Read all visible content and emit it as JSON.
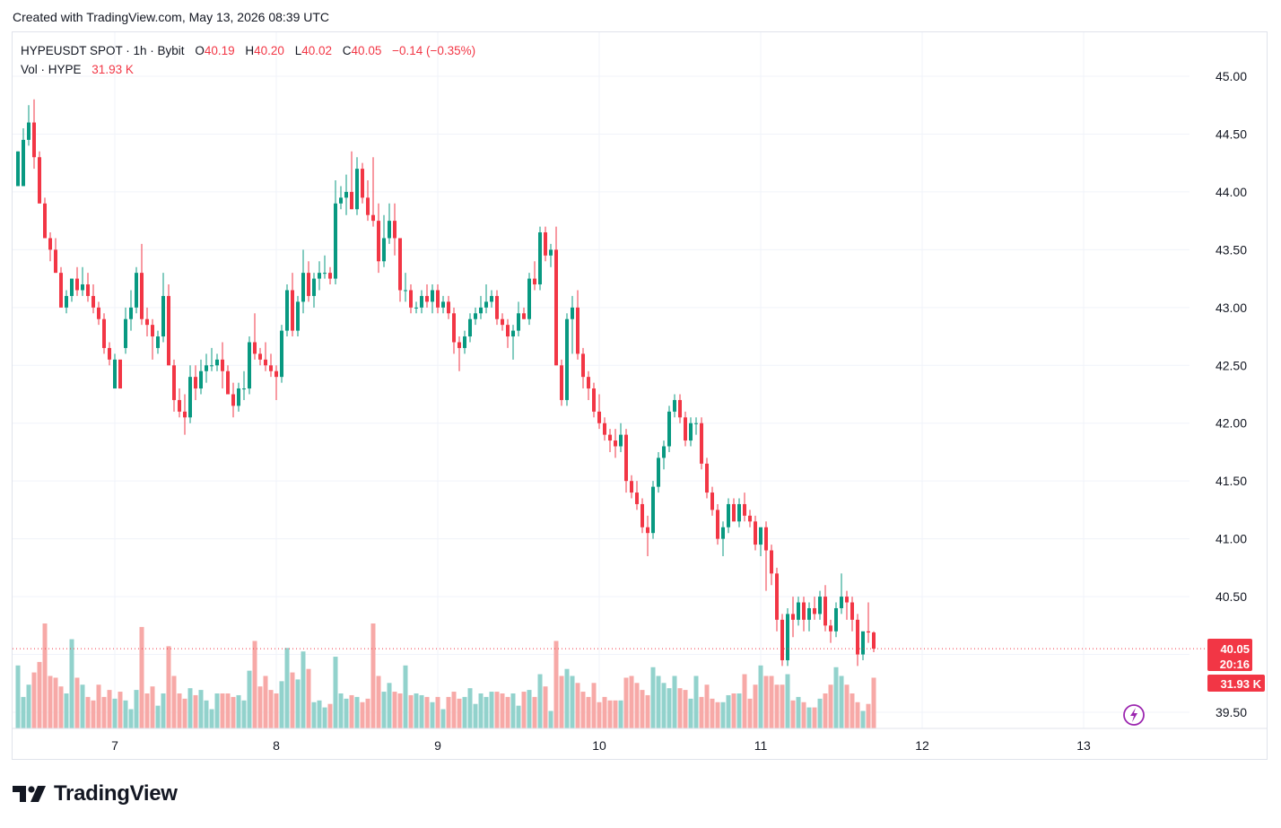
{
  "header": {
    "created_with": "Created with TradingView.com, May 13, 2026 08:39 UTC"
  },
  "legend": {
    "symbol": "HYPEUSDT SPOT · 1h · Bybit",
    "o_label": "O",
    "o_value": "40.19",
    "h_label": "H",
    "h_value": "40.20",
    "l_label": "L",
    "l_value": "40.02",
    "c_label": "C",
    "c_value": "40.05",
    "change": "−0.14 (−0.35%)",
    "vol_label": "Vol · HYPE",
    "vol_value": "31.93 K"
  },
  "price_tag": {
    "price": "40.05",
    "countdown": "20:16",
    "volume": "31.93 K"
  },
  "brand": {
    "name": "TradingView"
  },
  "colors": {
    "up": "#089981",
    "down": "#f23645",
    "up_vol": "#92d2cc",
    "down_vol": "#f7a9a7",
    "grid": "#f0f3fa",
    "axis_text": "#131722"
  },
  "chart_data": {
    "type": "candlestick",
    "ylim": [
      39.4,
      45.2
    ],
    "y_ticks": [
      "45.00",
      "44.50",
      "44.00",
      "43.50",
      "43.00",
      "42.50",
      "42.00",
      "41.50",
      "41.00",
      "40.50",
      "39.50"
    ],
    "x_ticks": [
      {
        "label": "7",
        "index": 18
      },
      {
        "label": "8",
        "index": 48
      },
      {
        "label": "9",
        "index": 78
      },
      {
        "label": "10",
        "index": 108
      },
      {
        "label": "11",
        "index": 138
      },
      {
        "label": "12",
        "index": 168
      },
      {
        "label": "13",
        "index": 198
      }
    ],
    "candles": [
      {
        "o": 44.05,
        "h": 44.35,
        "l": 44.05,
        "c": 44.35,
        "v": 0.36
      },
      {
        "o": 44.05,
        "h": 44.55,
        "l": 44.05,
        "c": 44.45,
        "v": 0.18
      },
      {
        "o": 44.45,
        "h": 44.75,
        "l": 44.4,
        "c": 44.6,
        "v": 0.25
      },
      {
        "o": 44.6,
        "h": 44.8,
        "l": 44.2,
        "c": 44.3,
        "v": 0.32
      },
      {
        "o": 44.3,
        "h": 44.35,
        "l": 43.9,
        "c": 43.9,
        "v": 0.38
      },
      {
        "o": 43.9,
        "h": 43.95,
        "l": 43.6,
        "c": 43.6,
        "v": 0.6
      },
      {
        "o": 43.6,
        "h": 43.65,
        "l": 43.4,
        "c": 43.5,
        "v": 0.3
      },
      {
        "o": 43.5,
        "h": 43.6,
        "l": 43.3,
        "c": 43.3,
        "v": 0.29
      },
      {
        "o": 43.3,
        "h": 43.35,
        "l": 43.0,
        "c": 43.0,
        "v": 0.24
      },
      {
        "o": 43.0,
        "h": 43.15,
        "l": 42.95,
        "c": 43.1,
        "v": 0.2
      },
      {
        "o": 43.1,
        "h": 43.25,
        "l": 43.05,
        "c": 43.25,
        "v": 0.51
      },
      {
        "o": 43.25,
        "h": 43.35,
        "l": 43.1,
        "c": 43.15,
        "v": 0.29
      },
      {
        "o": 43.15,
        "h": 43.35,
        "l": 43.1,
        "c": 43.2,
        "v": 0.25
      },
      {
        "o": 43.2,
        "h": 43.3,
        "l": 43.05,
        "c": 43.1,
        "v": 0.18
      },
      {
        "o": 43.1,
        "h": 43.2,
        "l": 42.95,
        "c": 43.0,
        "v": 0.16
      },
      {
        "o": 43.0,
        "h": 43.05,
        "l": 42.85,
        "c": 42.9,
        "v": 0.25
      },
      {
        "o": 42.9,
        "h": 42.95,
        "l": 42.6,
        "c": 42.65,
        "v": 0.18
      },
      {
        "o": 42.65,
        "h": 42.7,
        "l": 42.5,
        "c": 42.55,
        "v": 0.22
      },
      {
        "o": 42.3,
        "h": 42.6,
        "l": 42.3,
        "c": 42.55,
        "v": 0.17
      },
      {
        "o": 42.55,
        "h": 42.55,
        "l": 42.3,
        "c": 42.3,
        "v": 0.21
      },
      {
        "o": 42.65,
        "h": 43.0,
        "l": 42.6,
        "c": 42.9,
        "v": 0.16
      },
      {
        "o": 42.9,
        "h": 43.15,
        "l": 42.8,
        "c": 43.0,
        "v": 0.11
      },
      {
        "o": 43.0,
        "h": 43.35,
        "l": 42.95,
        "c": 43.3,
        "v": 0.22
      },
      {
        "o": 43.3,
        "h": 43.55,
        "l": 42.85,
        "c": 42.9,
        "v": 0.58
      },
      {
        "o": 42.9,
        "h": 43.0,
        "l": 42.75,
        "c": 42.85,
        "v": 0.2
      },
      {
        "o": 42.85,
        "h": 42.9,
        "l": 42.55,
        "c": 42.75,
        "v": 0.24
      },
      {
        "o": 42.65,
        "h": 42.8,
        "l": 42.6,
        "c": 42.75,
        "v": 0.13
      },
      {
        "o": 42.75,
        "h": 43.3,
        "l": 42.7,
        "c": 43.1,
        "v": 0.2
      },
      {
        "o": 43.1,
        "h": 43.2,
        "l": 42.5,
        "c": 42.5,
        "v": 0.47
      },
      {
        "o": 42.5,
        "h": 42.55,
        "l": 42.1,
        "c": 42.2,
        "v": 0.3
      },
      {
        "o": 42.2,
        "h": 42.3,
        "l": 42.05,
        "c": 42.1,
        "v": 0.2
      },
      {
        "o": 42.1,
        "h": 42.25,
        "l": 41.9,
        "c": 42.05,
        "v": 0.17
      },
      {
        "o": 42.05,
        "h": 42.5,
        "l": 42.0,
        "c": 42.4,
        "v": 0.23
      },
      {
        "o": 42.4,
        "h": 42.5,
        "l": 42.2,
        "c": 42.3,
        "v": 0.19
      },
      {
        "o": 42.3,
        "h": 42.55,
        "l": 42.25,
        "c": 42.45,
        "v": 0.22
      },
      {
        "o": 42.45,
        "h": 42.6,
        "l": 42.35,
        "c": 42.5,
        "v": 0.16
      },
      {
        "o": 42.5,
        "h": 42.65,
        "l": 42.45,
        "c": 42.5,
        "v": 0.11
      },
      {
        "o": 42.5,
        "h": 42.6,
        "l": 42.45,
        "c": 42.55,
        "v": 0.2
      },
      {
        "o": 42.55,
        "h": 42.7,
        "l": 42.3,
        "c": 42.45,
        "v": 0.2
      },
      {
        "o": 42.45,
        "h": 42.5,
        "l": 42.25,
        "c": 42.25,
        "v": 0.2
      },
      {
        "o": 42.25,
        "h": 42.35,
        "l": 42.05,
        "c": 42.15,
        "v": 0.18
      },
      {
        "o": 42.15,
        "h": 42.35,
        "l": 42.1,
        "c": 42.3,
        "v": 0.19
      },
      {
        "o": 42.3,
        "h": 42.45,
        "l": 42.2,
        "c": 42.3,
        "v": 0.16
      },
      {
        "o": 42.3,
        "h": 42.75,
        "l": 42.25,
        "c": 42.7,
        "v": 0.33
      },
      {
        "o": 42.7,
        "h": 42.95,
        "l": 42.55,
        "c": 42.6,
        "v": 0.5
      },
      {
        "o": 42.6,
        "h": 42.65,
        "l": 42.5,
        "c": 42.55,
        "v": 0.24
      },
      {
        "o": 42.55,
        "h": 42.7,
        "l": 42.45,
        "c": 42.5,
        "v": 0.3
      },
      {
        "o": 42.5,
        "h": 42.6,
        "l": 42.4,
        "c": 42.45,
        "v": 0.22
      },
      {
        "o": 42.45,
        "h": 42.5,
        "l": 42.2,
        "c": 42.4,
        "v": 0.2
      },
      {
        "o": 42.4,
        "h": 42.85,
        "l": 42.35,
        "c": 42.8,
        "v": 0.27
      },
      {
        "o": 42.8,
        "h": 43.2,
        "l": 42.75,
        "c": 43.15,
        "v": 0.46
      },
      {
        "o": 43.15,
        "h": 43.3,
        "l": 42.75,
        "c": 42.8,
        "v": 0.32
      },
      {
        "o": 42.8,
        "h": 43.1,
        "l": 42.75,
        "c": 43.05,
        "v": 0.28
      },
      {
        "o": 43.05,
        "h": 43.5,
        "l": 42.95,
        "c": 43.3,
        "v": 0.44
      },
      {
        "o": 43.3,
        "h": 43.4,
        "l": 43.05,
        "c": 43.1,
        "v": 0.34
      },
      {
        "o": 43.1,
        "h": 43.3,
        "l": 43.0,
        "c": 43.25,
        "v": 0.15
      },
      {
        "o": 43.25,
        "h": 43.4,
        "l": 43.15,
        "c": 43.3,
        "v": 0.16
      },
      {
        "o": 43.3,
        "h": 43.45,
        "l": 43.25,
        "c": 43.3,
        "v": 0.12
      },
      {
        "o": 43.3,
        "h": 43.35,
        "l": 43.2,
        "c": 43.25,
        "v": 0.14
      },
      {
        "o": 43.25,
        "h": 44.1,
        "l": 43.2,
        "c": 43.9,
        "v": 0.41
      },
      {
        "o": 43.9,
        "h": 44.05,
        "l": 43.85,
        "c": 43.95,
        "v": 0.2
      },
      {
        "o": 43.95,
        "h": 44.15,
        "l": 43.8,
        "c": 44.0,
        "v": 0.17
      },
      {
        "o": 44.0,
        "h": 44.35,
        "l": 43.85,
        "c": 43.85,
        "v": 0.19
      },
      {
        "o": 43.85,
        "h": 44.3,
        "l": 43.8,
        "c": 44.2,
        "v": 0.18
      },
      {
        "o": 44.2,
        "h": 44.25,
        "l": 43.9,
        "c": 43.95,
        "v": 0.15
      },
      {
        "o": 43.95,
        "h": 44.1,
        "l": 43.75,
        "c": 43.8,
        "v": 0.17
      },
      {
        "o": 43.8,
        "h": 44.3,
        "l": 43.7,
        "c": 43.75,
        "v": 0.6
      },
      {
        "o": 43.75,
        "h": 43.9,
        "l": 43.3,
        "c": 43.4,
        "v": 0.3
      },
      {
        "o": 43.4,
        "h": 43.8,
        "l": 43.35,
        "c": 43.6,
        "v": 0.21
      },
      {
        "o": 43.6,
        "h": 43.9,
        "l": 43.55,
        "c": 43.75,
        "v": 0.26
      },
      {
        "o": 43.75,
        "h": 43.9,
        "l": 43.45,
        "c": 43.6,
        "v": 0.21
      },
      {
        "o": 43.6,
        "h": 43.6,
        "l": 43.05,
        "c": 43.15,
        "v": 0.2
      },
      {
        "o": 43.15,
        "h": 43.3,
        "l": 43.05,
        "c": 43.15,
        "v": 0.36
      },
      {
        "o": 43.15,
        "h": 43.2,
        "l": 42.95,
        "c": 43.0,
        "v": 0.19
      },
      {
        "o": 43.0,
        "h": 43.05,
        "l": 42.95,
        "c": 43.0,
        "v": 0.2
      },
      {
        "o": 43.0,
        "h": 43.15,
        "l": 42.95,
        "c": 43.1,
        "v": 0.19
      },
      {
        "o": 43.1,
        "h": 43.2,
        "l": 43.0,
        "c": 43.05,
        "v": 0.18
      },
      {
        "o": 43.05,
        "h": 43.2,
        "l": 42.95,
        "c": 43.15,
        "v": 0.15
      },
      {
        "o": 43.15,
        "h": 43.2,
        "l": 42.95,
        "c": 43.0,
        "v": 0.18
      },
      {
        "o": 43.0,
        "h": 43.1,
        "l": 42.95,
        "c": 43.05,
        "v": 0.11
      },
      {
        "o": 43.05,
        "h": 43.1,
        "l": 42.9,
        "c": 42.95,
        "v": 0.18
      },
      {
        "o": 42.95,
        "h": 43.0,
        "l": 42.6,
        "c": 42.7,
        "v": 0.21
      },
      {
        "o": 42.7,
        "h": 42.75,
        "l": 42.45,
        "c": 42.65,
        "v": 0.17
      },
      {
        "o": 42.65,
        "h": 42.8,
        "l": 42.6,
        "c": 42.75,
        "v": 0.18
      },
      {
        "o": 42.75,
        "h": 42.95,
        "l": 42.7,
        "c": 42.9,
        "v": 0.23
      },
      {
        "o": 42.9,
        "h": 43.0,
        "l": 42.85,
        "c": 42.95,
        "v": 0.14
      },
      {
        "o": 42.95,
        "h": 43.1,
        "l": 42.9,
        "c": 43.0,
        "v": 0.2
      },
      {
        "o": 43.0,
        "h": 43.2,
        "l": 42.95,
        "c": 43.05,
        "v": 0.18
      },
      {
        "o": 43.05,
        "h": 43.15,
        "l": 43.0,
        "c": 43.1,
        "v": 0.21
      },
      {
        "o": 43.1,
        "h": 43.15,
        "l": 42.85,
        "c": 42.9,
        "v": 0.21
      },
      {
        "o": 42.9,
        "h": 42.95,
        "l": 42.8,
        "c": 42.85,
        "v": 0.2
      },
      {
        "o": 42.85,
        "h": 42.9,
        "l": 42.65,
        "c": 42.75,
        "v": 0.18
      },
      {
        "o": 42.75,
        "h": 42.85,
        "l": 42.55,
        "c": 42.8,
        "v": 0.2
      },
      {
        "o": 42.8,
        "h": 43.05,
        "l": 42.75,
        "c": 42.95,
        "v": 0.13
      },
      {
        "o": 42.95,
        "h": 43.0,
        "l": 42.9,
        "c": 42.9,
        "v": 0.21
      },
      {
        "o": 42.9,
        "h": 43.3,
        "l": 42.85,
        "c": 43.25,
        "v": 0.22
      },
      {
        "o": 43.25,
        "h": 43.4,
        "l": 43.15,
        "c": 43.2,
        "v": 0.18
      },
      {
        "o": 43.2,
        "h": 43.7,
        "l": 43.15,
        "c": 43.65,
        "v": 0.31
      },
      {
        "o": 43.65,
        "h": 43.7,
        "l": 43.4,
        "c": 43.45,
        "v": 0.24
      },
      {
        "o": 43.45,
        "h": 43.55,
        "l": 43.35,
        "c": 43.5,
        "v": 0.1
      },
      {
        "o": 43.5,
        "h": 43.7,
        "l": 42.5,
        "c": 42.5,
        "v": 0.5
      },
      {
        "o": 42.5,
        "h": 42.55,
        "l": 42.15,
        "c": 42.2,
        "v": 0.3
      },
      {
        "o": 42.2,
        "h": 42.95,
        "l": 42.15,
        "c": 42.9,
        "v": 0.34
      },
      {
        "o": 42.9,
        "h": 43.1,
        "l": 42.6,
        "c": 43.0,
        "v": 0.3
      },
      {
        "o": 43.0,
        "h": 43.15,
        "l": 42.55,
        "c": 42.6,
        "v": 0.26
      },
      {
        "o": 42.6,
        "h": 42.65,
        "l": 42.3,
        "c": 42.4,
        "v": 0.21
      },
      {
        "o": 42.4,
        "h": 42.45,
        "l": 42.2,
        "c": 42.3,
        "v": 0.18
      },
      {
        "o": 42.3,
        "h": 42.35,
        "l": 42.05,
        "c": 42.1,
        "v": 0.26
      },
      {
        "o": 42.1,
        "h": 42.25,
        "l": 41.95,
        "c": 42.0,
        "v": 0.15
      },
      {
        "o": 42.0,
        "h": 42.05,
        "l": 41.85,
        "c": 41.9,
        "v": 0.18
      },
      {
        "o": 41.9,
        "h": 41.95,
        "l": 41.75,
        "c": 41.85,
        "v": 0.16
      },
      {
        "o": 41.85,
        "h": 41.95,
        "l": 41.7,
        "c": 41.8,
        "v": 0.16
      },
      {
        "o": 41.8,
        "h": 42.0,
        "l": 41.75,
        "c": 41.9,
        "v": 0.16
      },
      {
        "o": 41.9,
        "h": 41.95,
        "l": 41.4,
        "c": 41.5,
        "v": 0.29
      },
      {
        "o": 41.5,
        "h": 41.55,
        "l": 41.35,
        "c": 41.4,
        "v": 0.3
      },
      {
        "o": 41.4,
        "h": 41.5,
        "l": 41.25,
        "c": 41.3,
        "v": 0.26
      },
      {
        "o": 41.3,
        "h": 41.35,
        "l": 41.05,
        "c": 41.1,
        "v": 0.22
      },
      {
        "o": 41.1,
        "h": 41.2,
        "l": 40.85,
        "c": 41.05,
        "v": 0.19
      },
      {
        "o": 41.05,
        "h": 41.5,
        "l": 41.0,
        "c": 41.45,
        "v": 0.35
      },
      {
        "o": 41.45,
        "h": 41.75,
        "l": 41.4,
        "c": 41.7,
        "v": 0.3
      },
      {
        "o": 41.7,
        "h": 41.85,
        "l": 41.6,
        "c": 41.8,
        "v": 0.26
      },
      {
        "o": 41.8,
        "h": 42.15,
        "l": 41.75,
        "c": 42.1,
        "v": 0.23
      },
      {
        "o": 42.1,
        "h": 42.25,
        "l": 42.05,
        "c": 42.2,
        "v": 0.3
      },
      {
        "o": 42.2,
        "h": 42.25,
        "l": 42.0,
        "c": 42.05,
        "v": 0.23
      },
      {
        "o": 42.05,
        "h": 42.1,
        "l": 41.8,
        "c": 41.85,
        "v": 0.22
      },
      {
        "o": 41.85,
        "h": 42.05,
        "l": 41.8,
        "c": 42.0,
        "v": 0.17
      },
      {
        "o": 42.0,
        "h": 42.05,
        "l": 41.9,
        "c": 42.0,
        "v": 0.3
      },
      {
        "o": 42.0,
        "h": 42.05,
        "l": 41.6,
        "c": 41.65,
        "v": 0.18
      },
      {
        "o": 41.65,
        "h": 41.7,
        "l": 41.35,
        "c": 41.4,
        "v": 0.25
      },
      {
        "o": 41.4,
        "h": 41.45,
        "l": 41.2,
        "c": 41.25,
        "v": 0.17
      },
      {
        "o": 41.25,
        "h": 41.3,
        "l": 40.95,
        "c": 41.0,
        "v": 0.15
      },
      {
        "o": 41.0,
        "h": 41.15,
        "l": 40.85,
        "c": 41.1,
        "v": 0.15
      },
      {
        "o": 41.1,
        "h": 41.35,
        "l": 41.05,
        "c": 41.3,
        "v": 0.19
      },
      {
        "o": 41.3,
        "h": 41.35,
        "l": 41.15,
        "c": 41.15,
        "v": 0.2
      },
      {
        "o": 41.15,
        "h": 41.35,
        "l": 41.1,
        "c": 41.3,
        "v": 0.2
      },
      {
        "o": 41.3,
        "h": 41.4,
        "l": 41.15,
        "c": 41.2,
        "v": 0.31
      },
      {
        "o": 41.2,
        "h": 41.25,
        "l": 41.1,
        "c": 41.15,
        "v": 0.17
      },
      {
        "o": 41.15,
        "h": 41.2,
        "l": 40.9,
        "c": 40.95,
        "v": 0.25
      },
      {
        "o": 40.95,
        "h": 41.05,
        "l": 40.85,
        "c": 41.1,
        "v": 0.36
      },
      {
        "o": 41.1,
        "h": 41.15,
        "l": 40.55,
        "c": 40.9,
        "v": 0.3
      },
      {
        "o": 40.9,
        "h": 40.95,
        "l": 40.6,
        "c": 40.7,
        "v": 0.3
      },
      {
        "o": 40.7,
        "h": 40.75,
        "l": 40.2,
        "c": 40.3,
        "v": 0.25
      },
      {
        "o": 40.3,
        "h": 40.35,
        "l": 39.9,
        "c": 39.95,
        "v": 0.25
      },
      {
        "o": 39.95,
        "h": 40.4,
        "l": 39.9,
        "c": 40.35,
        "v": 0.31
      },
      {
        "o": 40.35,
        "h": 40.5,
        "l": 40.15,
        "c": 40.3,
        "v": 0.16
      },
      {
        "o": 40.3,
        "h": 40.5,
        "l": 40.25,
        "c": 40.45,
        "v": 0.18
      },
      {
        "o": 40.45,
        "h": 40.5,
        "l": 40.2,
        "c": 40.3,
        "v": 0.15
      },
      {
        "o": 40.3,
        "h": 40.45,
        "l": 40.2,
        "c": 40.4,
        "v": 0.12
      },
      {
        "o": 40.4,
        "h": 40.5,
        "l": 40.3,
        "c": 40.35,
        "v": 0.12
      },
      {
        "o": 40.35,
        "h": 40.55,
        "l": 40.3,
        "c": 40.5,
        "v": 0.17
      },
      {
        "o": 40.5,
        "h": 40.6,
        "l": 40.2,
        "c": 40.25,
        "v": 0.2
      },
      {
        "o": 40.25,
        "h": 40.3,
        "l": 40.1,
        "c": 40.2,
        "v": 0.25
      },
      {
        "o": 40.2,
        "h": 40.45,
        "l": 40.15,
        "c": 40.4,
        "v": 0.35
      },
      {
        "o": 40.4,
        "h": 40.7,
        "l": 40.35,
        "c": 40.5,
        "v": 0.3
      },
      {
        "o": 40.5,
        "h": 40.55,
        "l": 40.3,
        "c": 40.45,
        "v": 0.25
      },
      {
        "o": 40.45,
        "h": 40.5,
        "l": 40.2,
        "c": 40.3,
        "v": 0.2
      },
      {
        "o": 40.3,
        "h": 40.35,
        "l": 39.9,
        "c": 40.0,
        "v": 0.15
      },
      {
        "o": 40.0,
        "h": 40.15,
        "l": 39.95,
        "c": 40.2,
        "v": 0.1
      },
      {
        "o": 40.2,
        "h": 40.45,
        "l": 40.1,
        "c": 40.19,
        "v": 0.14
      },
      {
        "o": 40.19,
        "h": 40.2,
        "l": 40.02,
        "c": 40.05,
        "v": 0.29
      }
    ]
  }
}
